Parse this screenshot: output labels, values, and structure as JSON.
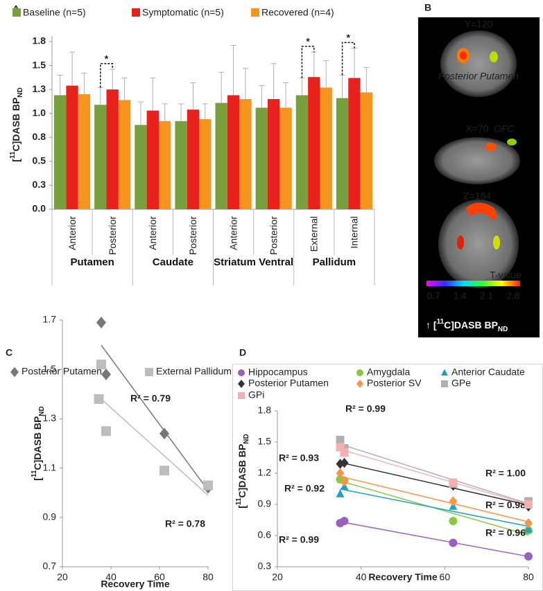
{
  "chart_data": [
    {
      "type": "bar",
      "label": "A",
      "y_label": {
        "pre": "[",
        "sup": "11",
        "mid": "C]DASB BP",
        "sub": "ND"
      },
      "categories": [
        "Anterior",
        "Posterior",
        "Anterior",
        "Posterior",
        "Anterior",
        "Posterior",
        "External",
        "Internal"
      ],
      "groups": [
        {
          "name": "Putamen",
          "size": 2
        },
        {
          "name": "Caudate",
          "size": 2
        },
        {
          "name": "Striatum Ventral",
          "size": 2
        },
        {
          "name": "Pallidum",
          "size": 2
        }
      ],
      "series": [
        {
          "name": "Baseline (n=5)",
          "color": "#77a03d",
          "values": [
            1.19,
            1.09,
            0.88,
            0.92,
            1.11,
            1.06,
            1.19,
            1.16
          ],
          "errors": [
            0.21,
            0.18,
            0.24,
            0.18,
            0.32,
            0.23,
            0.18,
            0.24
          ]
        },
        {
          "name": "Symptomatic (n=5)",
          "color": "#e8211c",
          "values": [
            1.29,
            1.25,
            1.03,
            1.04,
            1.19,
            1.15,
            1.38,
            1.37
          ],
          "errors": [
            0.35,
            0.21,
            0.34,
            0.28,
            0.52,
            0.37,
            0.26,
            0.31
          ]
        },
        {
          "name": "Recovered (n=4)",
          "color": "#f7941d",
          "values": [
            1.2,
            1.14,
            0.92,
            0.94,
            1.15,
            1.06,
            1.27,
            1.22
          ],
          "errors": [
            0.22,
            0.23,
            0.18,
            0.16,
            0.32,
            0.26,
            0.28,
            0.26
          ]
        }
      ],
      "ylim": [
        0,
        1.75
      ],
      "yticks": [
        {
          "value": 0,
          "label": "0.0"
        },
        {
          "value": 0.25,
          "label": "0.3"
        },
        0.5,
        {
          "value": 0.75,
          "label": "0.8"
        },
        {
          "value": 1,
          "label": "1.0"
        },
        {
          "value": 1.25,
          "label": "1.3"
        },
        1.5,
        {
          "value": 1.75,
          "label": "1.8"
        }
      ],
      "annotations": [
        {
          "text": "*",
          "category": 1
        },
        {
          "text": "*",
          "category": 6
        },
        {
          "text": "*",
          "category": 7
        }
      ]
    },
    {
      "type": "scatter",
      "label": "C",
      "x_label": "Recovery Time",
      "y_label": {
        "pre": "[",
        "sup": "11",
        "mid": "C]DASB BP",
        "sub": "ND"
      },
      "xlim": [
        20,
        80
      ],
      "xticks": [
        20,
        40,
        60,
        80
      ],
      "ylim": [
        0.7,
        1.7
      ],
      "yticks": [
        0.7,
        0.9,
        1.1,
        1.3,
        1.5,
        1.7
      ],
      "trendline": true,
      "series": [
        {
          "name": "Posterior Putamen",
          "color": "#777777",
          "marker": "diamond",
          "x": [
            36,
            38,
            62,
            80
          ],
          "values": [
            1.69,
            1.48,
            1.24,
            1.02
          ],
          "r2_label": "R² = 0.79"
        },
        {
          "name": "External Pallidum",
          "color": "#bdbdbd",
          "marker": "square",
          "x": [
            35,
            36,
            38,
            62,
            80
          ],
          "values": [
            1.38,
            1.52,
            1.25,
            1.09,
            1.03
          ],
          "r2_label": "R² = 0.78"
        }
      ]
    },
    {
      "type": "scatter",
      "label": "D",
      "x_label": "Recovery Time",
      "y_label": {
        "pre": "[",
        "sup": "11",
        "mid": "C]DASB BP",
        "sub": "ND"
      },
      "xlim": [
        20,
        80
      ],
      "xticks": [
        20,
        40,
        60,
        80
      ],
      "ylim": [
        0.3,
        1.8
      ],
      "yticks": [
        0.3,
        0.6,
        0.9,
        1.2,
        1.5,
        1.8
      ],
      "trendline": true,
      "series": [
        {
          "name": "Hippocampus",
          "color": "#9b5fc0",
          "marker": "circle",
          "x": [
            35,
            36,
            62,
            80
          ],
          "values": [
            0.72,
            0.74,
            0.53,
            0.4
          ],
          "r2_label": "R² = 0.99"
        },
        {
          "name": "Amygdala",
          "color": "#8dc63f",
          "marker": "circle",
          "x": [
            35,
            36,
            62,
            80
          ],
          "values": [
            1.14,
            1.13,
            0.74,
            0.65
          ],
          "r2_label": "R² = 0.96"
        },
        {
          "name": "Anterior Caudate",
          "color": "#1ba3c6",
          "marker": "triangle",
          "x": [
            35,
            36,
            62,
            80
          ],
          "values": [
            1.0,
            1.07,
            0.88,
            0.66
          ],
          "r2_label": "R² = 0.92"
        },
        {
          "name": "Posterior Putamen",
          "color": "#333333",
          "marker": "diamond",
          "x": [
            35,
            36,
            62,
            80
          ],
          "values": [
            1.29,
            1.3,
            1.08,
            0.88
          ],
          "r2_label": "R² = 0.98"
        },
        {
          "name": "Posterior SV",
          "color": "#f79646",
          "marker": "diamond",
          "x": [
            35,
            36,
            62,
            80
          ],
          "values": [
            1.2,
            1.12,
            0.93,
            0.72
          ],
          "r2_label": "R² = 0.93"
        },
        {
          "name": "GPe",
          "color": "#b0b0b0",
          "marker": "square",
          "x": [
            35,
            36,
            62,
            80
          ],
          "values": [
            1.52,
            1.44,
            1.1,
            0.93
          ],
          "r2_label": "R² = 0.99"
        },
        {
          "name": "GPi",
          "color": "#f4b0b0",
          "marker": "square",
          "x": [
            35,
            36,
            62,
            80
          ],
          "values": [
            1.45,
            1.4,
            1.11,
            0.9
          ],
          "r2_label": "R² = 1.00"
        }
      ]
    }
  ],
  "panel_b": {
    "label": "B",
    "slices": [
      {
        "title": "Y=120",
        "region": "Posterior Putamen"
      },
      {
        "title": "X=70",
        "region": "OFC"
      },
      {
        "title": "Z=184"
      }
    ],
    "colorbar": {
      "title": "T-value",
      "clim": [
        0.7,
        2.8
      ],
      "ticks": [
        0.7,
        1.4,
        2.1,
        2.8
      ]
    },
    "caption": {
      "pre": "↑ [",
      "sup": "11",
      "mid": "C]DASB BP",
      "sub": "ND"
    }
  }
}
